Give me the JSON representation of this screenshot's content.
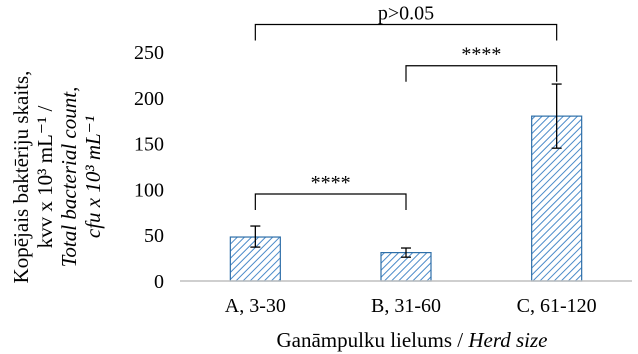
{
  "chart_data": {
    "type": "bar",
    "categories": [
      "A, 3-30",
      "B, 31-60",
      "C, 61-120"
    ],
    "values": [
      48,
      31,
      180
    ],
    "error_bars": [
      {
        "low": 37,
        "high": 60
      },
      {
        "low": 26,
        "high": 36
      },
      {
        "low": 145,
        "high": 215
      }
    ],
    "yticks": [
      "0",
      "50",
      "100",
      "150",
      "200",
      "250"
    ],
    "ylim": [
      0,
      250
    ],
    "grid": false,
    "bar_fill": "#ffffff",
    "bar_hatch": "#4a8ac9",
    "bar_stroke": "#2e6fa8",
    "xlabel": {
      "plain": "Ganāmpulku lielums / ",
      "italic": "Herd size"
    },
    "ylabel": {
      "line1": "Kopējais baktēriju skaits,",
      "line2": "kvv x 10³ mL⁻¹ /",
      "line3": "Total bacterial count,",
      "line4": "cfu x 10³ mL⁻¹"
    },
    "annotations": [
      {
        "from": 0,
        "to": 2,
        "bracket_y": 280,
        "label": "p>0.05"
      },
      {
        "from": 1,
        "to": 2,
        "bracket_y": 235,
        "label": "****"
      },
      {
        "from": 0,
        "to": 1,
        "bracket_y": 95,
        "label": "****"
      }
    ]
  }
}
